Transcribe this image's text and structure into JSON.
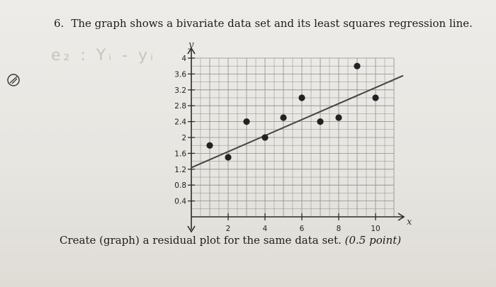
{
  "problem": {
    "number": "6.",
    "text": "The graph shows a bivariate data set and its least squares regression line."
  },
  "instruction": {
    "text": "Create (graph) a residual plot for the same data set.",
    "points": "(0.5 point)"
  },
  "pencil_note": "e₂ : Yᵢ - yᵢ",
  "chart_data": {
    "type": "scatter",
    "xlabel": "x",
    "ylabel": "y",
    "xlim": [
      0,
      11
    ],
    "ylim": [
      0,
      4
    ],
    "grid": true,
    "x_ticks": [
      2,
      4,
      6,
      8,
      10
    ],
    "x_tick_labels": [
      "2",
      "4",
      "6",
      "8",
      "10"
    ],
    "y_ticks": [
      0.4,
      0.8,
      1.2,
      1.6,
      2,
      2.4,
      2.8,
      3.2,
      3.6,
      4
    ],
    "y_tick_labels": [
      "0.4",
      "0.8",
      "1.2",
      "1.6",
      "2",
      "2.4",
      "2.8",
      "3.2",
      "3.6",
      "4"
    ],
    "points": [
      {
        "x": 1,
        "y": 1.8
      },
      {
        "x": 2,
        "y": 1.5
      },
      {
        "x": 3,
        "y": 2.4
      },
      {
        "x": 4,
        "y": 2.0
      },
      {
        "x": 5,
        "y": 2.5
      },
      {
        "x": 6,
        "y": 3.0
      },
      {
        "x": 7,
        "y": 2.4
      },
      {
        "x": 8,
        "y": 2.5
      },
      {
        "x": 9,
        "y": 3.8
      },
      {
        "x": 10,
        "y": 3.0
      }
    ],
    "regression_line": {
      "x": [
        0,
        12
      ],
      "y": [
        1.24,
        3.66
      ]
    },
    "colors": {
      "grid": "#8c8c8c",
      "axis": "#2a2a2a",
      "points": "#222222",
      "line": "#444444"
    }
  }
}
